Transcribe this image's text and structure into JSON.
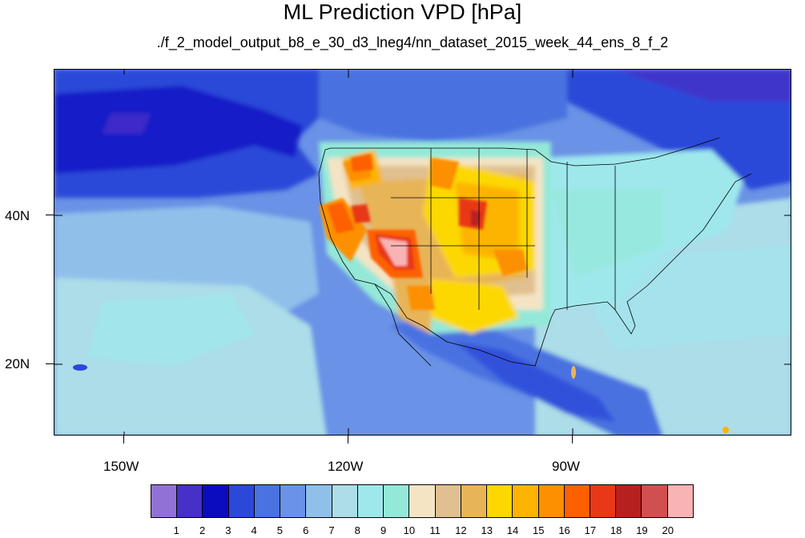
{
  "title": "ML Prediction VPD [hPa]",
  "subtitle": "./f_2_model_output_b8_e_30_d3_lneg4/nn_dataset_2015_week_44_ens_8_f_2",
  "map": {
    "projection": "equirectangular",
    "lon_range": [
      -160.5,
      -61
    ],
    "lat_range": [
      10.5,
      60
    ],
    "lat_labels": [
      "40N",
      "20N"
    ],
    "lon_labels": [
      "150W",
      "120W",
      "90W"
    ]
  },
  "chart_data": {
    "type": "heatmap",
    "title": "ML Prediction VPD [hPa]",
    "subtitle": "./f_2_model_output_b8_e_30_d3_lneg4/nn_dataset_2015_week_44_ens_8_f_2",
    "colorbar": {
      "levels": [
        "1",
        "2",
        "3",
        "4",
        "5",
        "6",
        "7",
        "8",
        "9",
        "10",
        "11",
        "12",
        "13",
        "14",
        "15",
        "16",
        "17",
        "18",
        "19",
        "20"
      ],
      "colors": [
        "#9271d6",
        "#4630c8",
        "#0b0cc0",
        "#2c48d8",
        "#4a72e0",
        "#6a92e6",
        "#90c0ea",
        "#acdde8",
        "#9ee8ec",
        "#94e8d8",
        "#f4e4c4",
        "#e0c090",
        "#e8b458",
        "#fcd800",
        "#fcb400",
        "#fc9000",
        "#fc6000",
        "#e83818",
        "#b82020",
        "#d05050",
        "#f8b4b4"
      ]
    }
  }
}
